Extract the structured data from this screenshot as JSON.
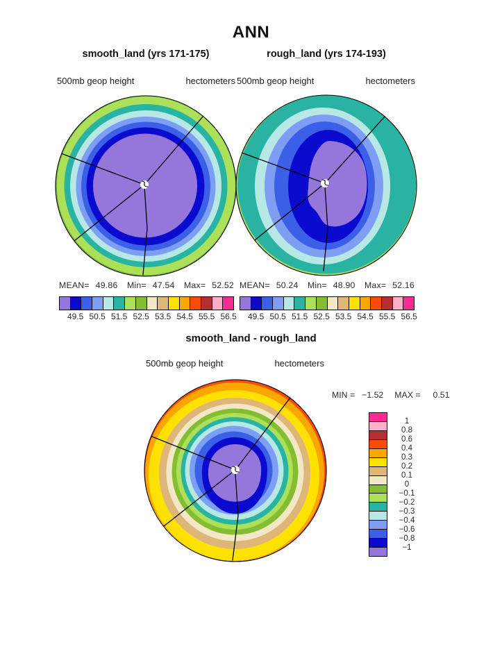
{
  "header": {
    "title": "ANN"
  },
  "palette": {
    "purple": "#9577dc",
    "darkblue": "#0b0bd0",
    "royalblue": "#3c5fe8",
    "lightblue": "#7d9ef2",
    "palecyan": "#b8e8e6",
    "teal": "#28b3a3",
    "lightgreen": "#ade059",
    "olive": "#85bd32",
    "cream": "#f3e8c5",
    "tan": "#deb677",
    "yellow": "#ffe100",
    "orange": "#fba703",
    "redorange": "#fa4b09",
    "darkred": "#b62f2f",
    "pink": "#ffb0c8",
    "magenta": "#fa2b92"
  },
  "colorbar": {
    "colors_low_to_high": [
      "#9577dc",
      "#0b0bd0",
      "#3c5fe8",
      "#7d9ef2",
      "#b8e8e6",
      "#28b3a3",
      "#ade059",
      "#85bd32",
      "#f3e8c5",
      "#deb677",
      "#ffe100",
      "#fba703",
      "#fa4b09",
      "#b62f2f",
      "#ffb0c8",
      "#fa2b92"
    ]
  },
  "panels": {
    "left": {
      "title": "smooth_land (yrs 171-175)",
      "field_label": "500mb geop height",
      "units_label": "hectometers",
      "stats": {
        "mean_label": "MEAN=",
        "mean": "49.86",
        "min_label": "Min=",
        "min": "47.54",
        "max_label": "Max=",
        "max": "52.52"
      },
      "ticks": [
        "49.5",
        "50.5",
        "51.5",
        "52.5",
        "53.5",
        "54.5",
        "55.5",
        "56.5"
      ]
    },
    "right": {
      "title": "rough_land (yrs 174-193)",
      "field_label": "500mb geop height",
      "units_label": "hectometers",
      "stats": {
        "mean_label": "MEAN=",
        "mean": "50.24",
        "min_label": "Min=",
        "min": "48.90",
        "max_label": "Max=",
        "max": "52.16"
      },
      "ticks": [
        "49.5",
        "50.5",
        "51.5",
        "52.5",
        "53.5",
        "54.5",
        "55.5",
        "56.5"
      ]
    },
    "diff": {
      "title": "smooth_land - rough_land",
      "field_label": "500mb geop height",
      "units_label": "hectometers",
      "min_label": "MIN =",
      "min": "−1.52",
      "max_label": "MAX =",
      "max": "0.51",
      "ticks": [
        "1",
        "0.8",
        "0.6",
        "0.4",
        "0.3",
        "0.2",
        "0.1",
        "0",
        "−0.1",
        "−0.2",
        "−0.3",
        "−0.4",
        "−0.6",
        "−0.8",
        "−1"
      ]
    }
  },
  "chart_data": [
    {
      "type": "heatmap",
      "title": "smooth_land (yrs 171-175)",
      "variable": "500mb geop height",
      "units": "hectometers",
      "projection": "polar stereographic",
      "stats": {
        "mean": 49.86,
        "min": 47.54,
        "max": 52.52
      },
      "contour_interval": 0.5,
      "labeled_levels": [
        49.5,
        50.5,
        51.5,
        52.5,
        53.5,
        54.5,
        55.5,
        56.5
      ],
      "palette_low_to_high": [
        "#9577dc",
        "#0b0bd0",
        "#3c5fe8",
        "#7d9ef2",
        "#b8e8e6",
        "#28b3a3",
        "#ade059",
        "#85bd32",
        "#f3e8c5",
        "#deb677",
        "#ffe100",
        "#fba703",
        "#fa4b09",
        "#b62f2f",
        "#ffb0c8",
        "#fa2b92"
      ],
      "pattern": "nearly circular concentric bands decreasing toward pole: light green (~52-52.5) at rim, then teal, pale cyan, light blue, blue, dark blue ring, broad purple core (<49.5) around pole"
    },
    {
      "type": "heatmap",
      "title": "rough_land (yrs 174-193)",
      "variable": "500mb geop height",
      "units": "hectometers",
      "projection": "polar stereographic",
      "stats": {
        "mean": 50.24,
        "min": 48.9,
        "max": 52.16
      },
      "contour_interval": 0.5,
      "labeled_levels": [
        49.5,
        50.5,
        51.5,
        52.5,
        53.5,
        54.5,
        55.5,
        56.5
      ],
      "palette_low_to_high": [
        "#9577dc",
        "#0b0bd0",
        "#3c5fe8",
        "#7d9ef2",
        "#b8e8e6",
        "#28b3a3",
        "#ade059",
        "#85bd32",
        "#f3e8c5",
        "#deb677",
        "#ffe100",
        "#fba703",
        "#fa4b09",
        "#b62f2f",
        "#ffb0c8",
        "#fa2b92"
      ],
      "pattern": "same bands as smooth_land but much thicker dark blue ring and a smaller irregular purple core offset toward upper right with a notch on its lower-left side"
    },
    {
      "type": "heatmap",
      "title": "smooth_land - rough_land",
      "variable": "500mb geop height",
      "units": "hectometers",
      "projection": "polar stereographic",
      "stats": {
        "min": -1.52,
        "max": 0.51
      },
      "contour_levels": [
        -1,
        -0.8,
        -0.6,
        -0.4,
        -0.3,
        -0.2,
        -0.1,
        0,
        0.1,
        0.2,
        0.3,
        0.4,
        0.6,
        0.8,
        1
      ],
      "palette_low_to_high": [
        "#9577dc",
        "#0b0bd0",
        "#3c5fe8",
        "#7d9ef2",
        "#b8e8e6",
        "#28b3a3",
        "#ade059",
        "#85bd32",
        "#f3e8c5",
        "#deb677",
        "#ffe100",
        "#fba703",
        "#fa4b09",
        "#b62f2f",
        "#ffb0c8",
        "#fa2b92"
      ],
      "pattern": "positive differences (red-orange/orange/yellow, up to ~0.5) around the rim, strongest at top; bands step through tan, cream, greens, teal and blues inward to a dark blue ring and purple core (< -1) near the pole"
    }
  ]
}
